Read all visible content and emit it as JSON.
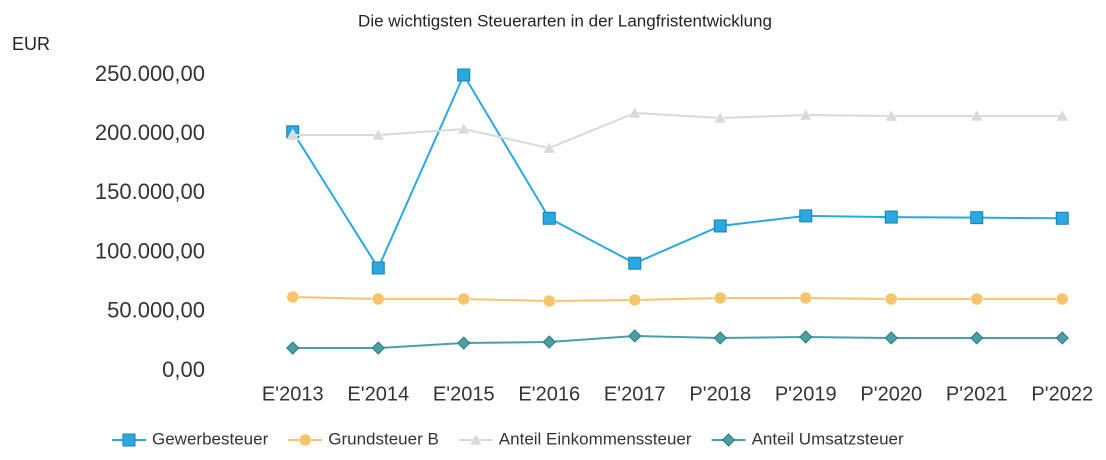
{
  "chart_data": {
    "type": "line",
    "title": "Die wichtigsten Steuerarten in der Langfristentwicklung",
    "y_label": "EUR",
    "categories": [
      "E'2013",
      "E'2014",
      "E'2015",
      "E'2016",
      "E'2017",
      "P'2018",
      "P'2019",
      "P'2020",
      "P'2021",
      "P'2022"
    ],
    "series": [
      {
        "name": "Gewerbesteuer",
        "color": "#29a9e0",
        "marker": "square",
        "values": [
          202000,
          87000,
          250000,
          129000,
          91000,
          122500,
          131000,
          130000,
          129500,
          129000
        ]
      },
      {
        "name": "Grundsteuer B",
        "color": "#f5c46b",
        "marker": "circle",
        "values": [
          62500,
          60800,
          60800,
          59100,
          60000,
          61700,
          61700,
          60800,
          60800,
          60800
        ]
      },
      {
        "name": "Anteil Einkommenssteuer",
        "color": "#d9d9d9",
        "marker": "triangle",
        "values": [
          199300,
          199300,
          204400,
          188300,
          217900,
          213700,
          216200,
          215400,
          215400,
          215400
        ]
      },
      {
        "name": "Anteil Umsatzsteuer",
        "color": "#4a9fa6",
        "marker": "diamond",
        "values": [
          19400,
          19400,
          23600,
          24500,
          29600,
          27900,
          28700,
          27900,
          27900,
          27900
        ]
      }
    ],
    "ylim": [
      0,
      250000
    ],
    "yticks": [
      {
        "value": 0,
        "label": "0,00"
      },
      {
        "value": 50000,
        "label": "50.000,00"
      },
      {
        "value": 100000,
        "label": "100.000,00"
      },
      {
        "value": 150000,
        "label": "150.000,00"
      },
      {
        "value": 200000,
        "label": "200.000,00"
      },
      {
        "value": 250000,
        "label": "250.000,00"
      }
    ],
    "grid": false,
    "legend": "bottom"
  }
}
